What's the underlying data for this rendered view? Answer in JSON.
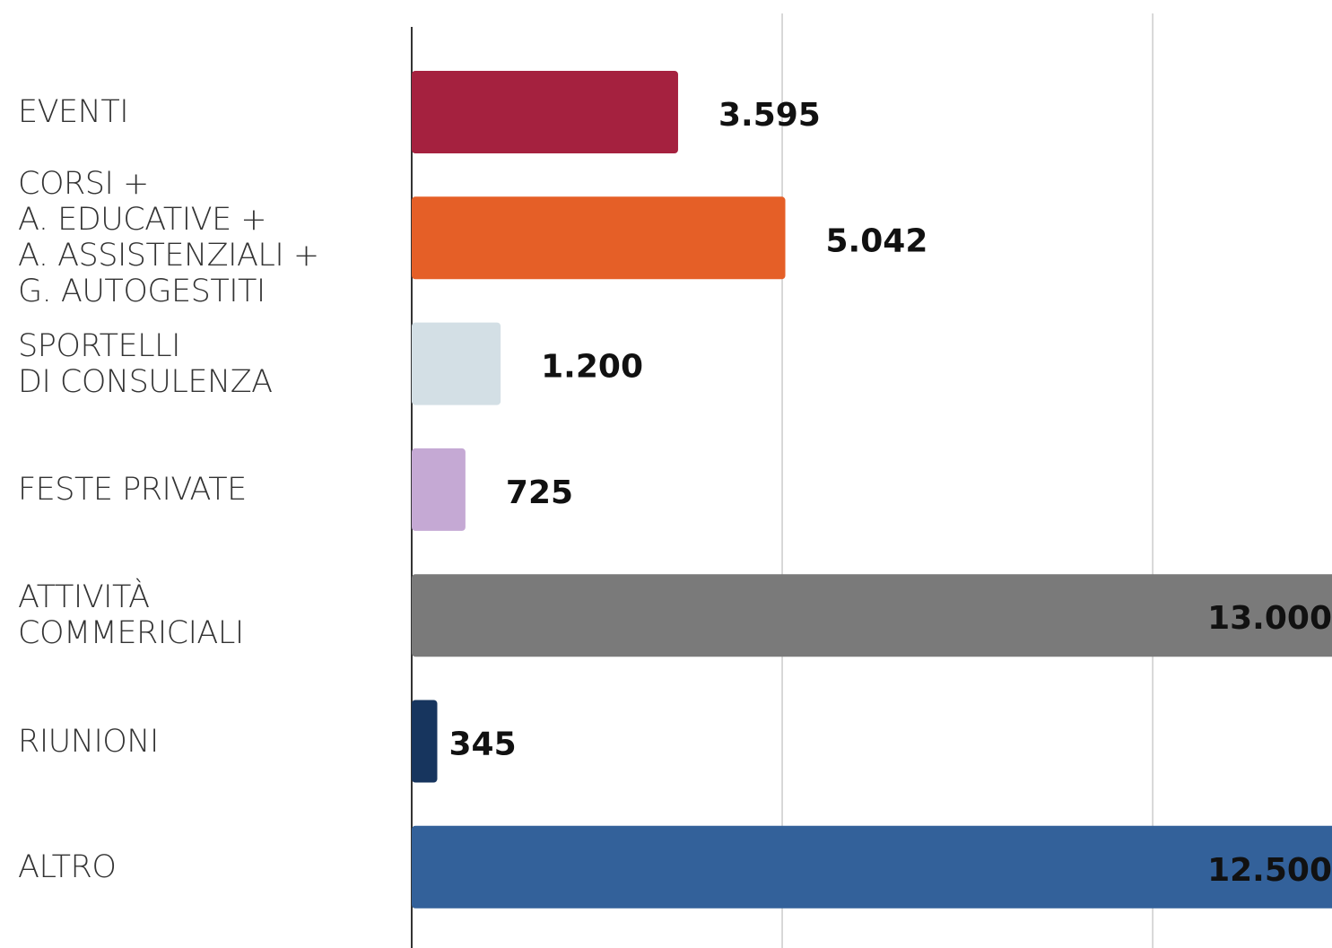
{
  "chart_data": {
    "type": "barh",
    "categories": [
      "EVENTI",
      "CORSI +\nA. EDUCATIVE +\nA. ASSISTENZIALI +\nG. AUTOGESTITI",
      "SPORTELLI\nDI CONSULENZA",
      "FESTE PRIVATE",
      "ATTIVITÀ\nCOMMERICIALI",
      "RIUNIONI",
      "ALTRO"
    ],
    "values": [
      3595,
      5042,
      1200,
      725,
      13000,
      345,
      12500
    ],
    "value_labels": [
      "3.595",
      "5.042",
      "1.200",
      "725",
      "13.000",
      "345",
      "12.500"
    ],
    "colors": [
      "#a5213f",
      "#e55f27",
      "#d3dfe5",
      "#c5a9d4",
      "#7a7a7a",
      "#17355e",
      "#33619a"
    ],
    "xlim": [
      0,
      12420
    ],
    "xticks": [
      0,
      5000,
      10000
    ],
    "grid": true
  }
}
